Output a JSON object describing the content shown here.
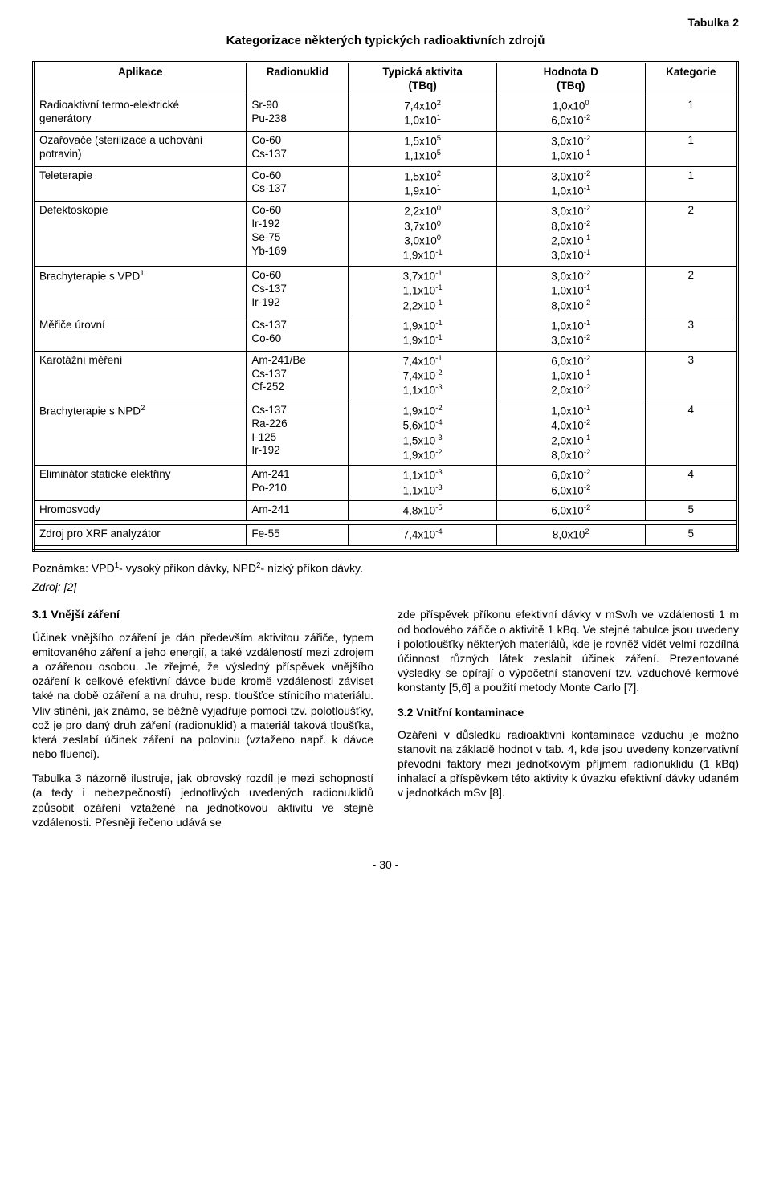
{
  "labels": {
    "table_tag": "Tabulka 2",
    "title": "Kategorizace některých typických radioaktivních zdrojů",
    "page_num": "- 30 -",
    "note_a": "Poznámka: VPD",
    "note_b": "- vysoký příkon dávky, NPD",
    "note_c": "- nízký příkon dávky.",
    "source": "Zdroj: [2]"
  },
  "headers": {
    "app": "Aplikace",
    "nuk": "Radionuklid",
    "act_a": "Typická aktivita",
    "act_b": "(TBq)",
    "val_a": "Hodnota D",
    "val_b": "(TBq)",
    "cat": "Kategorie"
  },
  "rows": [
    {
      "app_a": "Radioaktivní termo-elektrické",
      "app_b": "generátory",
      "nuk": [
        "Sr-90",
        "Pu-238"
      ],
      "act": [
        [
          "7,4x10",
          "2"
        ],
        [
          "1,0x10",
          "1"
        ]
      ],
      "val": [
        [
          "1,0x10",
          "0"
        ],
        [
          "6,0x10",
          "-2"
        ]
      ],
      "cat": "1"
    },
    {
      "app_a": "Ozařovače (sterilizace a uchování",
      "app_b": "potravin)",
      "nuk": [
        "Co-60",
        "Cs-137"
      ],
      "act": [
        [
          "1,5x10",
          "5"
        ],
        [
          "1,1x10",
          "5"
        ]
      ],
      "val": [
        [
          "3,0x10",
          "-2"
        ],
        [
          "1,0x10",
          "-1"
        ]
      ],
      "cat": "1"
    },
    {
      "app_a": "Teleterapie",
      "nuk": [
        "Co-60",
        "Cs-137"
      ],
      "act": [
        [
          "1,5x10",
          "2"
        ],
        [
          "1,9x10",
          "1"
        ]
      ],
      "val": [
        [
          "3,0x10",
          "-2"
        ],
        [
          "1,0x10",
          "-1"
        ]
      ],
      "cat": "1"
    },
    {
      "app_a": "Defektoskopie",
      "nuk": [
        "Co-60",
        "Ir-192",
        "Se-75",
        "Yb-169"
      ],
      "act": [
        [
          "2,2x10",
          "0"
        ],
        [
          "3,7x10",
          "0"
        ],
        [
          "3,0x10",
          "0"
        ],
        [
          "1,9x10",
          "-1"
        ]
      ],
      "val": [
        [
          "3,0x10",
          "-2"
        ],
        [
          "8,0x10",
          "-2"
        ],
        [
          "2,0x10",
          "-1"
        ],
        [
          "3,0x10",
          "-1"
        ]
      ],
      "cat": "2"
    },
    {
      "app_a": "Brachyterapie s VPD",
      "sup": "1",
      "nuk": [
        "Co-60",
        "Cs-137",
        "Ir-192"
      ],
      "act": [
        [
          "3,7x10",
          "-1"
        ],
        [
          "1,1x10",
          "-1"
        ],
        [
          "2,2x10",
          "-1"
        ]
      ],
      "val": [
        [
          "3,0x10",
          "-2"
        ],
        [
          "1,0x10",
          "-1"
        ],
        [
          "8,0x10",
          "-2"
        ]
      ],
      "cat": "2"
    },
    {
      "app_a": "Měřiče úrovní",
      "nuk": [
        "Cs-137",
        "Co-60"
      ],
      "act": [
        [
          "1,9x10",
          "-1"
        ],
        [
          "1,9x10",
          "-1"
        ]
      ],
      "val": [
        [
          "1,0x10",
          "-1"
        ],
        [
          "3,0x10",
          "-2"
        ]
      ],
      "cat": "3"
    },
    {
      "app_a": "Karotážní měření",
      "nuk": [
        "Am-241/Be",
        "Cs-137",
        "Cf-252"
      ],
      "act": [
        [
          "7,4x10",
          "-1"
        ],
        [
          "7,4x10",
          "-2"
        ],
        [
          "1,1x10",
          "-3"
        ]
      ],
      "val": [
        [
          "6,0x10",
          "-2"
        ],
        [
          "1,0x10",
          "-1"
        ],
        [
          "2,0x10",
          "-2"
        ]
      ],
      "cat": "3"
    },
    {
      "app_a": "Brachyterapie s NPD",
      "sup": "2",
      "nuk": [
        "Cs-137",
        "Ra-226",
        "I-125",
        "Ir-192"
      ],
      "act": [
        [
          "1,9x10",
          "-2"
        ],
        [
          "5,6x10",
          "-4"
        ],
        [
          "1,5x10",
          "-3"
        ],
        [
          "1,9x10",
          "-2"
        ]
      ],
      "val": [
        [
          "1,0x10",
          "-1"
        ],
        [
          "4,0x10",
          "-2"
        ],
        [
          "2,0x10",
          "-1"
        ],
        [
          "8,0x10",
          "-2"
        ]
      ],
      "cat": "4"
    },
    {
      "app_a": "Eliminátor statické elektřiny",
      "nuk": [
        "Am-241",
        "Po-210"
      ],
      "act": [
        [
          "1,1x10",
          "-3"
        ],
        [
          "1,1x10",
          "-3"
        ]
      ],
      "val": [
        [
          "6,0x10",
          "-2"
        ],
        [
          "6,0x10",
          "-2"
        ]
      ],
      "cat": "4"
    },
    {
      "app_a": "Hromosvody",
      "nuk": [
        "Am-241"
      ],
      "act": [
        [
          "4,8x10",
          "-5"
        ]
      ],
      "val": [
        [
          "6,0x10",
          "-2"
        ]
      ],
      "cat": "5"
    }
  ],
  "xrf": {
    "app": "Zdroj pro XRF analyzátor",
    "nuk": "Fe-55",
    "act_m": "7,4x10",
    "act_e": "-4",
    "val_m": "8,0x10",
    "val_e": "2",
    "cat": "5"
  },
  "body": {
    "h31": "3.1 Vnější záření",
    "p1": "Účinek vnějšího ozáření je dán především aktivitou zářiče, typem emitovaného záření a jeho energií, a také vzdáleností mezi zdrojem a ozářenou osobou. Je zřejmé, že výsledný příspěvek vnějšího ozáření k celkové efektivní dávce bude kromě vzdálenosti záviset také na době ozáření a na druhu, resp. tloušťce stínicího materiálu. Vliv stínění, jak známo, se běžně vyjadřuje pomocí tzv. polotloušťky, což je pro daný druh záření (radionuklid) a materiál taková tloušťka, která zeslabí účinek záření na polovinu (vztaženo např. k dávce nebo fluenci).",
    "p2": "Tabulka 3 názorně ilustruje, jak obrovský rozdíl je mezi schopností (a tedy i nebezpečností) jednotlivých uvedených radionuklidů způsobit ozáření vztažené na jednotkovou aktivitu ve stejné vzdálenosti. Přesněji řečeno udává se",
    "p3": "zde příspěvek příkonu efektivní dávky v mSv/h ve vzdálenosti 1 m od bodového zářiče o aktivitě 1 kBq. Ve stejné tabulce jsou uvedeny i polotloušťky některých materiálů, kde je rovněž vidět velmi rozdílná účinnost různých látek zeslabit účinek záření. Prezentované výsledky se opírají o výpočetní stanovení tzv. vzduchové kermové konstanty [5,6] a použití metody Monte Carlo [7].",
    "h32": "3.2 Vnitřní kontaminace",
    "p4": "Ozáření v důsledku radioaktivní kontaminace vzduchu je možno stanovit na základě hodnot v tab. 4, kde jsou uvedeny konzervativní převodní faktory mezi jednotkovým příjmem radionuklidu (1 kBq) inhalací a příspěvkem této aktivity k úvazku efektivní dávky udaném v jednotkách mSv [8]."
  }
}
